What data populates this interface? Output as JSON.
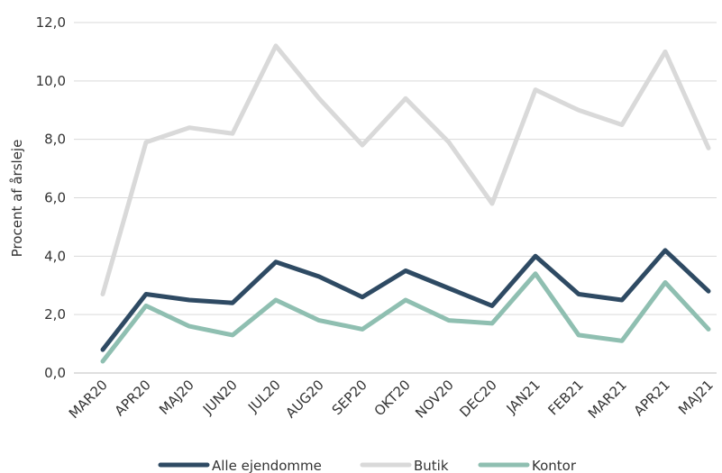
{
  "chart_data": {
    "type": "line",
    "title": "",
    "xlabel": "",
    "ylabel": "Procent af årsleje",
    "ylim": [
      0,
      12
    ],
    "yticks": [
      "0,0",
      "2,0",
      "4,0",
      "6,0",
      "8,0",
      "10,0",
      "12,0"
    ],
    "ytick_values": [
      0,
      2,
      4,
      6,
      8,
      10,
      12
    ],
    "categories": [
      "MAR20",
      "APR20",
      "MAJ20",
      "JUN20",
      "JUL20",
      "AUG20",
      "SEP20",
      "OKT20",
      "NOV20",
      "DEC20",
      "JAN21",
      "FEB21",
      "MAR21",
      "APR21",
      "MAJ21"
    ],
    "grid": true,
    "legend_position": "bottom",
    "series": [
      {
        "name": "Alle ejendomme",
        "color": "#2e4a63",
        "values": [
          0.8,
          2.7,
          2.5,
          2.4,
          3.8,
          3.3,
          2.6,
          3.5,
          2.9,
          2.3,
          4.0,
          2.7,
          2.5,
          4.2,
          2.8
        ]
      },
      {
        "name": "Butik",
        "color": "#d9d9d9",
        "values": [
          2.7,
          7.9,
          8.4,
          8.2,
          11.2,
          9.4,
          7.8,
          9.4,
          7.9,
          5.8,
          9.7,
          9.0,
          8.5,
          11.0,
          7.7
        ]
      },
      {
        "name": "Kontor",
        "color": "#8fbfb1",
        "values": [
          0.4,
          2.3,
          1.6,
          1.3,
          2.5,
          1.8,
          1.5,
          2.5,
          1.8,
          1.7,
          3.4,
          1.3,
          1.1,
          3.1,
          1.5
        ]
      }
    ]
  }
}
